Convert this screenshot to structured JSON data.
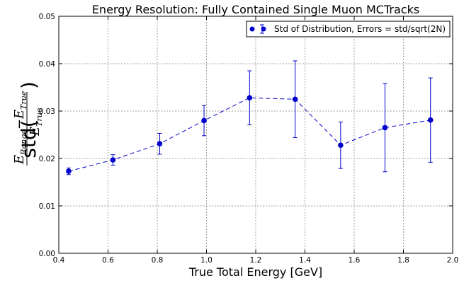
{
  "chart_data": {
    "type": "scatter",
    "title": "Energy Resolution: Fully Contained Single Muon MCTracks",
    "xlabel": "True Total Energy [GeV]",
    "ylabel": {
      "prefix": "std(",
      "num_e": "E",
      "num_range": "Range",
      "minus": "−",
      "num_true": "True",
      "den_e": "E",
      "den_true": "True",
      "suffix": ")"
    },
    "xlim": [
      0.4,
      2.0
    ],
    "ylim": [
      0.0,
      0.05
    ],
    "xticks": [
      "0.4",
      "0.6",
      "0.8",
      "1.0",
      "1.2",
      "1.4",
      "1.6",
      "1.8",
      "2.0"
    ],
    "yticks": [
      "0.00",
      "0.01",
      "0.02",
      "0.03",
      "0.04",
      "0.05"
    ],
    "grid": true,
    "legend_position": "top-right",
    "color": "#0000cc",
    "series": [
      {
        "name": "Std of Distribution, Errors = std/sqrt(2N)",
        "points": [
          {
            "x": 0.44,
            "y": 0.0173,
            "err": 0.0007
          },
          {
            "x": 0.62,
            "y": 0.0197,
            "err": 0.0011
          },
          {
            "x": 0.81,
            "y": 0.0231,
            "err": 0.0022
          },
          {
            "x": 0.99,
            "y": 0.028,
            "err": 0.0032
          },
          {
            "x": 1.175,
            "y": 0.0328,
            "err": 0.0057
          },
          {
            "x": 1.36,
            "y": 0.0325,
            "err": 0.0081
          },
          {
            "x": 1.545,
            "y": 0.0228,
            "err": 0.0049
          },
          {
            "x": 1.725,
            "y": 0.0265,
            "err": 0.0093
          },
          {
            "x": 1.91,
            "y": 0.0281,
            "err": 0.0089
          }
        ]
      }
    ]
  }
}
